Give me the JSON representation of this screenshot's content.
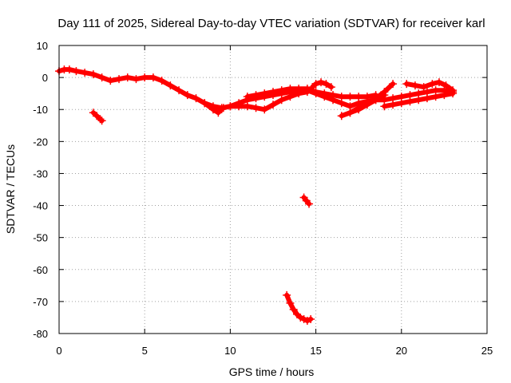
{
  "chart_data": {
    "type": "scatter",
    "title": "Day 111 of 2025, Sidereal Day-to-day VTEC variation (SDTVAR) for receiver karl",
    "xlabel": "GPS time / hours",
    "ylabel": "SDTVAR / TECUs",
    "xlim": [
      0,
      25
    ],
    "ylim": [
      -80,
      10
    ],
    "xticks": [
      0,
      5,
      10,
      15,
      20,
      25
    ],
    "yticks": [
      10,
      0,
      -10,
      -20,
      -30,
      -40,
      -50,
      -60,
      -70,
      -80
    ],
    "grid": true,
    "marker_color": "#ff0000",
    "series": [
      {
        "name": "main-trace",
        "x": [
          0.0,
          0.3,
          0.6,
          1.0,
          1.5,
          2.0,
          2.5,
          3.0,
          3.5,
          4.0,
          4.5,
          5.0,
          5.5,
          6.0,
          6.5,
          7.0,
          7.5,
          8.0,
          8.5,
          9.0,
          9.3,
          9.6,
          10.0,
          10.5,
          11.0,
          11.5,
          12.0,
          12.5,
          13.0,
          13.5,
          14.0,
          14.5,
          15.0,
          15.5,
          16.0,
          16.5,
          17.0,
          17.5,
          18.0,
          18.5,
          19.0,
          19.5,
          20.0,
          20.5,
          21.0,
          21.5,
          22.0,
          22.5,
          23.0
        ],
        "y": [
          2.0,
          2.5,
          2.5,
          2.0,
          1.5,
          1.0,
          0.0,
          -1.0,
          -0.5,
          0.0,
          -0.5,
          0.0,
          0.0,
          -1.0,
          -2.5,
          -4.0,
          -5.5,
          -6.5,
          -8.0,
          -10.0,
          -11.0,
          -9.5,
          -9.0,
          -8.0,
          -7.0,
          -6.5,
          -6.0,
          -5.5,
          -5.0,
          -4.5,
          -4.0,
          -4.0,
          -5.0,
          -6.0,
          -7.0,
          -8.0,
          -9.0,
          -8.0,
          -7.5,
          -7.0,
          -7.0,
          -6.5,
          -6.0,
          -5.5,
          -5.0,
          -4.5,
          -4.0,
          -4.0,
          -4.5
        ]
      },
      {
        "name": "lower-band",
        "x": [
          8.5,
          9.0,
          9.5,
          10.0,
          10.5,
          11.0,
          11.5,
          12.0,
          12.5,
          13.0,
          13.5,
          14.0,
          14.5
        ],
        "y": [
          -8.0,
          -9.0,
          -9.5,
          -9.0,
          -9.0,
          -9.0,
          -9.5,
          -10.0,
          -8.5,
          -7.0,
          -6.0,
          -5.0,
          -4.5
        ]
      },
      {
        "name": "upper-band",
        "x": [
          11.0,
          11.5,
          12.0,
          12.5,
          13.0,
          13.5,
          14.0,
          14.5,
          15.0,
          15.5,
          16.0,
          16.5,
          17.0,
          17.5,
          18.0,
          18.5
        ],
        "y": [
          -6.0,
          -5.5,
          -5.0,
          -4.5,
          -4.0,
          -3.5,
          -3.5,
          -3.5,
          -4.5,
          -5.0,
          -5.5,
          -6.0,
          -6.0,
          -6.0,
          -6.0,
          -5.5
        ]
      },
      {
        "name": "arc-15",
        "x": [
          14.8,
          15.0,
          15.3,
          15.6,
          15.9
        ],
        "y": [
          -3.0,
          -2.0,
          -1.5,
          -2.0,
          -3.0
        ]
      },
      {
        "name": "rising-a",
        "x": [
          16.5,
          17.0,
          17.5,
          18.0,
          18.5,
          19.0,
          19.5
        ],
        "y": [
          -12.0,
          -11.0,
          -9.5,
          -8.0,
          -6.5,
          -4.5,
          -2.0
        ]
      },
      {
        "name": "rising-b",
        "x": [
          17.0,
          17.5,
          18.0,
          18.5,
          19.0
        ],
        "y": [
          -11.0,
          -10.0,
          -8.5,
          -7.0,
          -5.5
        ]
      },
      {
        "name": "band-22",
        "x": [
          20.3,
          20.8,
          21.3,
          21.8,
          22.2,
          22.6,
          23.0
        ],
        "y": [
          -2.0,
          -2.5,
          -3.0,
          -2.0,
          -1.5,
          -2.5,
          -4.0
        ]
      },
      {
        "name": "lower-22",
        "x": [
          19.0,
          19.5,
          20.0,
          20.5,
          21.0,
          21.5,
          22.0,
          22.5,
          23.0
        ],
        "y": [
          -9.0,
          -8.5,
          -8.0,
          -7.5,
          -7.0,
          -6.5,
          -6.0,
          -5.5,
          -5.0
        ]
      },
      {
        "name": "segment-2",
        "x": [
          2.0,
          2.2,
          2.4,
          2.5
        ],
        "y": [
          -11.0,
          -12.0,
          -13.0,
          -13.5
        ]
      },
      {
        "name": "segment-14",
        "x": [
          14.3,
          14.45,
          14.6
        ],
        "y": [
          -37.5,
          -38.5,
          -39.5
        ]
      },
      {
        "name": "deep-arc",
        "x": [
          13.3,
          13.5,
          13.7,
          13.9,
          14.1,
          14.3,
          14.5,
          14.7
        ],
        "y": [
          -68.0,
          -70.5,
          -72.5,
          -74.0,
          -75.0,
          -75.5,
          -76.0,
          -75.5
        ]
      }
    ]
  }
}
